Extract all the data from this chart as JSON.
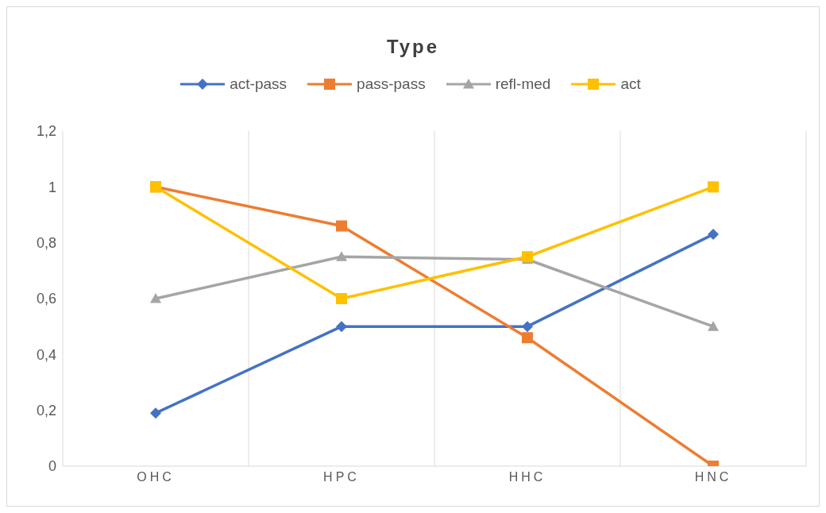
{
  "chart_data": {
    "type": "line",
    "title": "Type",
    "categories": [
      "OHC",
      "HPC",
      "HHC",
      "HNC"
    ],
    "series": [
      {
        "name": "act-pass",
        "color": "#4472c4",
        "marker": "diamond",
        "values": [
          0.19,
          0.5,
          0.5,
          0.83
        ]
      },
      {
        "name": "pass-pass",
        "color": "#ed7d31",
        "marker": "square",
        "values": [
          1,
          0.86,
          0.46,
          0
        ]
      },
      {
        "name": "refl-med",
        "color": "#a5a5a5",
        "marker": "triangle",
        "values": [
          0.6,
          0.75,
          0.74,
          0.5
        ]
      },
      {
        "name": "act",
        "color": "#ffc000",
        "marker": "square",
        "values": [
          1,
          0.6,
          0.75,
          1
        ]
      }
    ],
    "ylim": [
      0,
      1.2
    ],
    "yticks": [
      0,
      {
        "value": 0.2,
        "label": "0,2"
      },
      {
        "value": 0.4,
        "label": "0,4"
      },
      {
        "value": 0.6,
        "label": "0,6"
      },
      {
        "value": 0.8,
        "label": "0,8"
      },
      1,
      {
        "value": 1.2,
        "label": "1,2"
      }
    ],
    "grid": "x",
    "legend": "top",
    "line_style": "solid"
  }
}
